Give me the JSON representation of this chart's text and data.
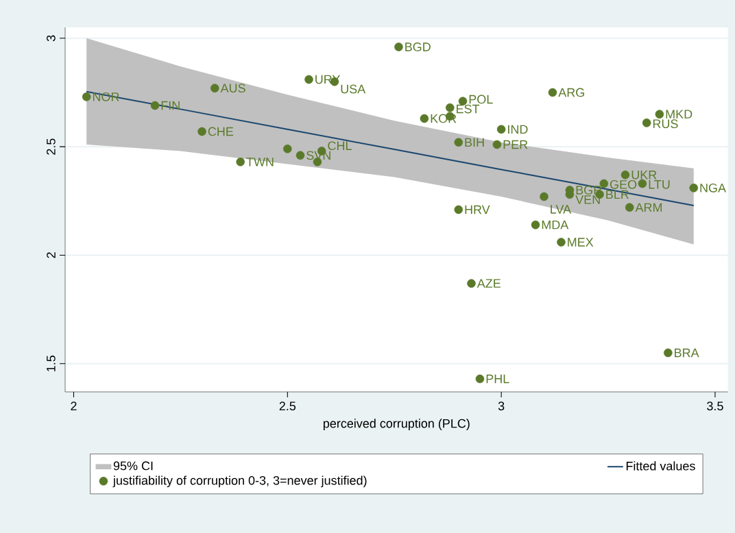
{
  "chart_data": {
    "type": "scatter",
    "xlabel": "perceived corruption (PLC)",
    "xlim": [
      1.98,
      3.53
    ],
    "ylim": [
      1.37,
      3.05
    ],
    "xticks": [
      2,
      2.5,
      3,
      3.5
    ],
    "yticks": [
      1.5,
      2,
      2.5,
      3
    ],
    "grid": "y",
    "legend": "bottom",
    "series": [
      {
        "name": "Fitted values",
        "type": "line",
        "marker": "none",
        "color": "#1a476f",
        "line_style": "solid",
        "x": [
          2.03,
          2.25,
          2.5,
          2.75,
          3.0,
          3.25,
          3.45
        ],
        "values": [
          2.754,
          2.673,
          2.58,
          2.488,
          2.395,
          2.303,
          2.229
        ],
        "upper": [
          3.0,
          2.87,
          2.74,
          2.62,
          2.52,
          2.45,
          2.4
        ],
        "lower": [
          2.51,
          2.48,
          2.42,
          2.36,
          2.27,
          2.16,
          2.05
        ]
      },
      {
        "name": "justifiability of corruption 0-3, 3=never justified)",
        "type": "scatter",
        "marker": "circle",
        "color": "#5a7a2a",
        "x": [
          2.03,
          2.19,
          2.33,
          2.3,
          2.39,
          2.5,
          2.53,
          2.57,
          2.58,
          2.55,
          2.61,
          2.76,
          2.82,
          2.88,
          2.88,
          2.91,
          2.9,
          2.99,
          3.0,
          3.12,
          3.37,
          3.34,
          3.29,
          3.24,
          3.33,
          3.45,
          3.16,
          3.16,
          3.23,
          3.1,
          3.3,
          3.08,
          3.14,
          2.9,
          2.93,
          3.39,
          2.95
        ],
        "values": [
          2.73,
          2.69,
          2.77,
          2.57,
          2.43,
          2.49,
          2.46,
          2.43,
          2.48,
          2.81,
          2.8,
          2.96,
          2.63,
          2.64,
          2.68,
          2.71,
          2.52,
          2.51,
          2.58,
          2.75,
          2.65,
          2.61,
          2.37,
          2.33,
          2.33,
          2.31,
          2.3,
          2.28,
          2.28,
          2.27,
          2.22,
          2.14,
          2.06,
          2.21,
          1.87,
          1.55,
          1.43
        ]
      }
    ],
    "annotations": [
      "95% CI",
      {
        "text": "NOR",
        "x": 2.03,
        "y": 2.73
      },
      {
        "text": "FIN",
        "x": 2.19,
        "y": 2.69
      },
      {
        "text": "AUS",
        "x": 2.33,
        "y": 2.77
      },
      {
        "text": "CHE",
        "x": 2.3,
        "y": 2.57
      },
      {
        "text": "TWN",
        "x": 2.39,
        "y": 2.43
      },
      {
        "text": "SVN",
        "x": 2.53,
        "y": 2.46
      },
      {
        "text": "CHL",
        "x": 2.58,
        "y": 2.48
      },
      {
        "text": "URY",
        "x": 2.55,
        "y": 2.81
      },
      {
        "text": "USA",
        "x": 2.61,
        "y": 2.8
      },
      {
        "text": "BGD",
        "x": 2.76,
        "y": 2.96
      },
      {
        "text": "KOR",
        "x": 2.82,
        "y": 2.63
      },
      {
        "text": "EST",
        "x": 2.88,
        "y": 2.64
      },
      {
        "text": "POL",
        "x": 2.91,
        "y": 2.71
      },
      {
        "text": "BIH",
        "x": 2.9,
        "y": 2.52
      },
      {
        "text": "PER",
        "x": 2.99,
        "y": 2.51
      },
      {
        "text": "IND",
        "x": 3.0,
        "y": 2.58
      },
      {
        "text": "ARG",
        "x": 3.12,
        "y": 2.75
      },
      {
        "text": "MKD",
        "x": 3.37,
        "y": 2.65
      },
      {
        "text": "RUS",
        "x": 3.34,
        "y": 2.61
      },
      {
        "text": "UKR",
        "x": 3.29,
        "y": 2.37
      },
      {
        "text": "GEO",
        "x": 3.24,
        "y": 2.33
      },
      {
        "text": "LTU",
        "x": 3.33,
        "y": 2.33
      },
      {
        "text": "NGA",
        "x": 3.45,
        "y": 2.31
      },
      {
        "text": "BGR",
        "x": 3.16,
        "y": 2.3
      },
      {
        "text": "VEN",
        "x": 3.16,
        "y": 2.28
      },
      {
        "text": "BLR",
        "x": 3.23,
        "y": 2.28
      },
      {
        "text": "LVA",
        "x": 3.1,
        "y": 2.27
      },
      {
        "text": "ARM",
        "x": 3.3,
        "y": 2.22
      },
      {
        "text": "MDA",
        "x": 3.08,
        "y": 2.14
      },
      {
        "text": "MEX",
        "x": 3.14,
        "y": 2.06
      },
      {
        "text": "HRV",
        "x": 2.9,
        "y": 2.21
      },
      {
        "text": "AZE",
        "x": 2.93,
        "y": 1.87
      },
      {
        "text": "BRA",
        "x": 3.39,
        "y": 1.55
      },
      {
        "text": "PHL",
        "x": 2.95,
        "y": 1.43
      }
    ]
  }
}
